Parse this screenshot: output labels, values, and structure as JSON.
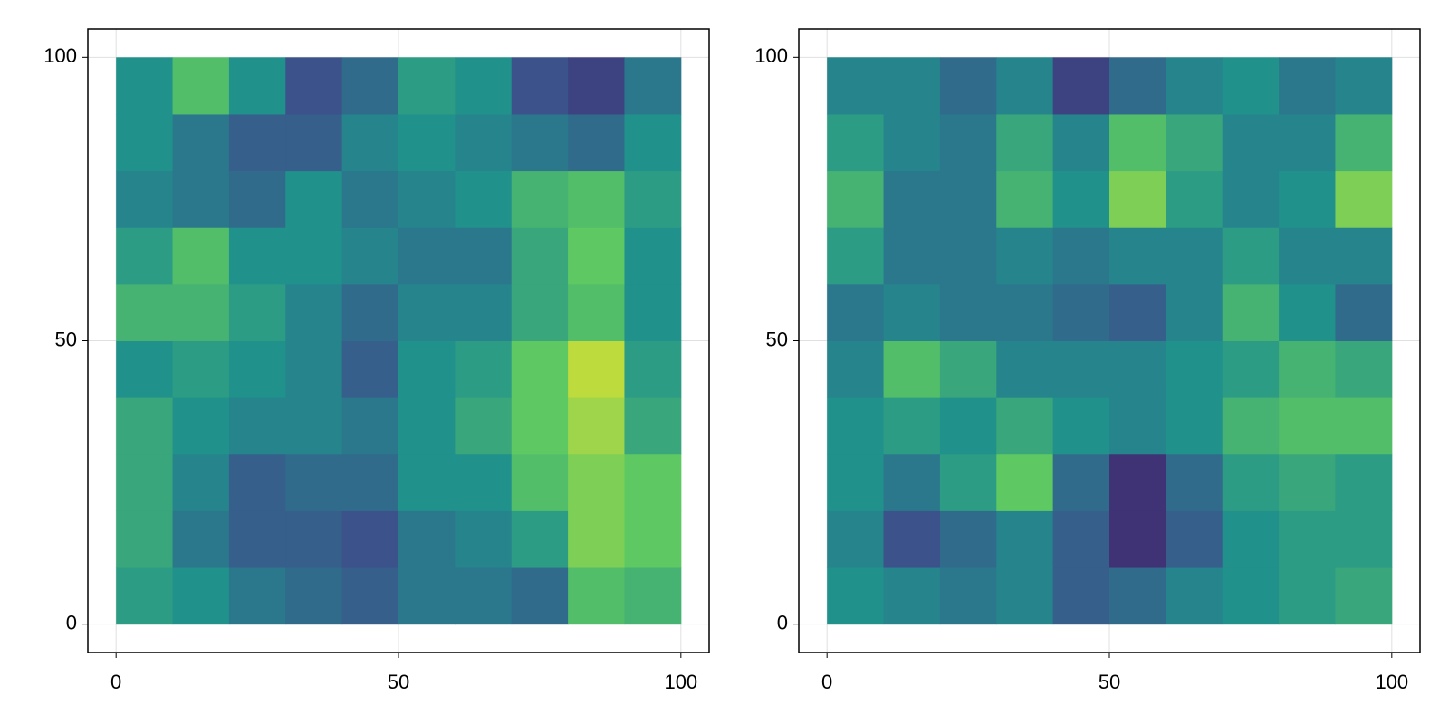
{
  "chart_data": [
    {
      "type": "heatmap",
      "colormap": [
        "#440154",
        "#3b528b",
        "#21918c",
        "#5ec962",
        "#fde725"
      ],
      "clim": [
        0,
        1
      ],
      "xbins": [
        0,
        10,
        20,
        30,
        40,
        50,
        60,
        70,
        80,
        90,
        100
      ],
      "ybins": [
        0,
        10,
        20,
        30,
        40,
        50,
        60,
        70,
        80,
        90,
        100
      ],
      "values": [
        [
          0.55,
          0.5,
          0.4,
          0.35,
          0.3,
          0.4,
          0.4,
          0.35,
          0.7,
          0.65
        ],
        [
          0.6,
          0.4,
          0.3,
          0.3,
          0.25,
          0.4,
          0.45,
          0.55,
          0.8,
          0.75
        ],
        [
          0.6,
          0.45,
          0.3,
          0.35,
          0.35,
          0.5,
          0.5,
          0.7,
          0.8,
          0.75
        ],
        [
          0.6,
          0.5,
          0.45,
          0.45,
          0.4,
          0.5,
          0.6,
          0.75,
          0.85,
          0.6
        ],
        [
          0.5,
          0.55,
          0.5,
          0.45,
          0.3,
          0.5,
          0.55,
          0.75,
          0.9,
          0.55
        ],
        [
          0.65,
          0.65,
          0.55,
          0.45,
          0.35,
          0.45,
          0.45,
          0.6,
          0.7,
          0.5
        ],
        [
          0.55,
          0.7,
          0.5,
          0.5,
          0.45,
          0.4,
          0.4,
          0.6,
          0.75,
          0.5
        ],
        [
          0.45,
          0.4,
          0.35,
          0.5,
          0.4,
          0.45,
          0.5,
          0.65,
          0.7,
          0.55
        ],
        [
          0.5,
          0.4,
          0.3,
          0.3,
          0.45,
          0.5,
          0.45,
          0.4,
          0.35,
          0.5
        ],
        [
          0.5,
          0.7,
          0.5,
          0.25,
          0.35,
          0.55,
          0.5,
          0.25,
          0.2,
          0.4
        ]
      ],
      "xlim": [
        -5,
        105
      ],
      "ylim": [
        -5,
        105
      ],
      "xticks": [
        0,
        50,
        100
      ],
      "yticks": [
        0,
        50,
        100
      ],
      "grid": true
    },
    {
      "type": "heatmap",
      "colormap": [
        "#440154",
        "#3b528b",
        "#21918c",
        "#5ec962",
        "#fde725"
      ],
      "clim": [
        0,
        1
      ],
      "xbins": [
        0,
        10,
        20,
        30,
        40,
        50,
        60,
        70,
        80,
        90,
        100
      ],
      "ybins": [
        0,
        10,
        20,
        30,
        40,
        50,
        60,
        70,
        80,
        90,
        100
      ],
      "values": [
        [
          0.5,
          0.45,
          0.4,
          0.45,
          0.3,
          0.35,
          0.45,
          0.5,
          0.55,
          0.6
        ],
        [
          0.45,
          0.25,
          0.35,
          0.45,
          0.3,
          0.15,
          0.3,
          0.5,
          0.55,
          0.55
        ],
        [
          0.5,
          0.4,
          0.55,
          0.75,
          0.35,
          0.15,
          0.35,
          0.55,
          0.6,
          0.55
        ],
        [
          0.5,
          0.55,
          0.5,
          0.6,
          0.5,
          0.45,
          0.5,
          0.65,
          0.7,
          0.7
        ],
        [
          0.45,
          0.7,
          0.6,
          0.45,
          0.45,
          0.45,
          0.5,
          0.55,
          0.65,
          0.6
        ],
        [
          0.4,
          0.45,
          0.4,
          0.4,
          0.35,
          0.3,
          0.45,
          0.65,
          0.5,
          0.35
        ],
        [
          0.55,
          0.4,
          0.4,
          0.45,
          0.4,
          0.45,
          0.45,
          0.55,
          0.45,
          0.45
        ],
        [
          0.65,
          0.4,
          0.4,
          0.65,
          0.5,
          0.8,
          0.55,
          0.45,
          0.5,
          0.8
        ],
        [
          0.55,
          0.45,
          0.4,
          0.6,
          0.45,
          0.7,
          0.6,
          0.45,
          0.45,
          0.65
        ],
        [
          0.45,
          0.45,
          0.35,
          0.45,
          0.2,
          0.35,
          0.45,
          0.5,
          0.4,
          0.45
        ]
      ],
      "xlim": [
        -5,
        105
      ],
      "ylim": [
        -5,
        105
      ],
      "xticks": [
        0,
        50,
        100
      ],
      "yticks": [
        0,
        50,
        100
      ],
      "grid": true
    }
  ]
}
